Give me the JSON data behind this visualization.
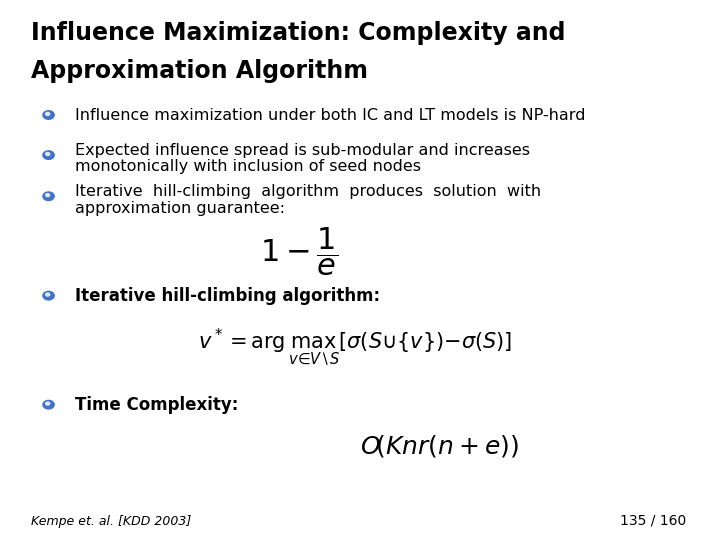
{
  "title_line1": "Influence Maximization: Complexity and",
  "title_line2": "Approximation Algorithm",
  "bullet1": "Influence maximization under both IC and LT models is NP-hard",
  "bullet2_line1": "Expected influence spread is sub-modular and increases",
  "bullet2_line2": "monotonically with inclusion of seed nodes",
  "bullet3_line1": "Iterative  hill-climbing  algorithm  produces  solution  with",
  "bullet3_line2": "approximation guarantee:",
  "formula1": "$1 - \\dfrac{1}{e}$",
  "bullet4": "Iterative hill-climbing algorithm:",
  "formula2": "$v^* = \\arg\\max_{v \\in V \\setminus S}\\left[\\sigma(S \\cup \\{v\\}) - \\sigma(S)\\right]$",
  "bullet5_label": "Time Complexity:",
  "formula3": "$O\\!\\left(Knr(n+e)\\right)$",
  "footer_left": "Kempe et. al. [KDD 2003]",
  "footer_right": "135 / 160",
  "bg_color": "#ffffff",
  "title_color": "#000000",
  "text_color": "#000000",
  "bullet_color": "#4472C4",
  "title_fontsize": 17,
  "text_fontsize": 11.5,
  "bold_bullet_fontsize": 12
}
